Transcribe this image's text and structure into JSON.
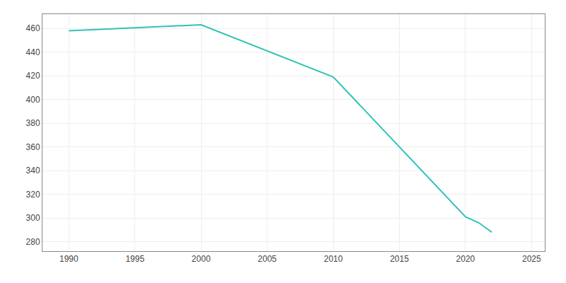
{
  "chart_data": {
    "type": "line",
    "x": [
      1990,
      2000,
      2010,
      2020,
      2021,
      2022
    ],
    "values": [
      458,
      463,
      419,
      301,
      296,
      288
    ],
    "color": "#2ec4b6",
    "xlim": [
      1988,
      2026
    ],
    "ylim": [
      272,
      472
    ],
    "xticks": [
      1990,
      1995,
      2000,
      2005,
      2010,
      2015,
      2020,
      2025
    ],
    "yticks": [
      280,
      300,
      320,
      340,
      360,
      380,
      400,
      420,
      440,
      460
    ],
    "grid": true
  }
}
